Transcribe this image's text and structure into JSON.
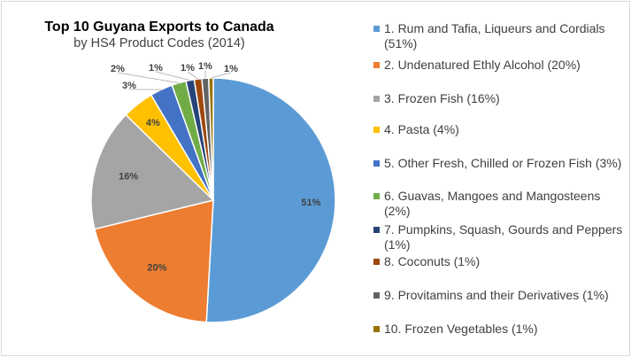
{
  "chart_data": {
    "type": "pie",
    "title": "Top 10 Guyana Exports to Canada",
    "subtitle": "by HS4 Product Codes (2014)",
    "categories": [
      "1. Rum and Tafia, Liqueurs and Cordials (51%)",
      "2. Undenatured Ethly Alcohol (20%)",
      "3. Frozen Fish (16%)",
      "4. Pasta (4%)",
      "5. Other Fresh, Chilled or Frozen Fish (3%)",
      "6. Guavas, Mangoes and Mangosteens (2%)",
      "7. Pumpkins, Squash, Gourds and Peppers (1%)",
      "8. Coconuts (1%)",
      "9. Provitamins and their Derivatives (1%)",
      "10. Frozen Vegetables (1%)"
    ],
    "values": [
      50.9,
      20.3,
      16.1,
      4.2,
      3.0,
      1.9,
      1.1,
      1.0,
      0.9,
      0.6
    ],
    "data_labels": [
      "51%",
      "20%",
      "16%",
      "4%",
      "3%",
      "2%",
      "1%",
      "1%",
      "1%",
      "1%"
    ],
    "colors": [
      "#5b9bd5",
      "#ed7d31",
      "#a5a5a5",
      "#ffc000",
      "#4472c4",
      "#70ad47",
      "#264478",
      "#9e480e",
      "#636363",
      "#997300"
    ],
    "legend_position": "right"
  }
}
